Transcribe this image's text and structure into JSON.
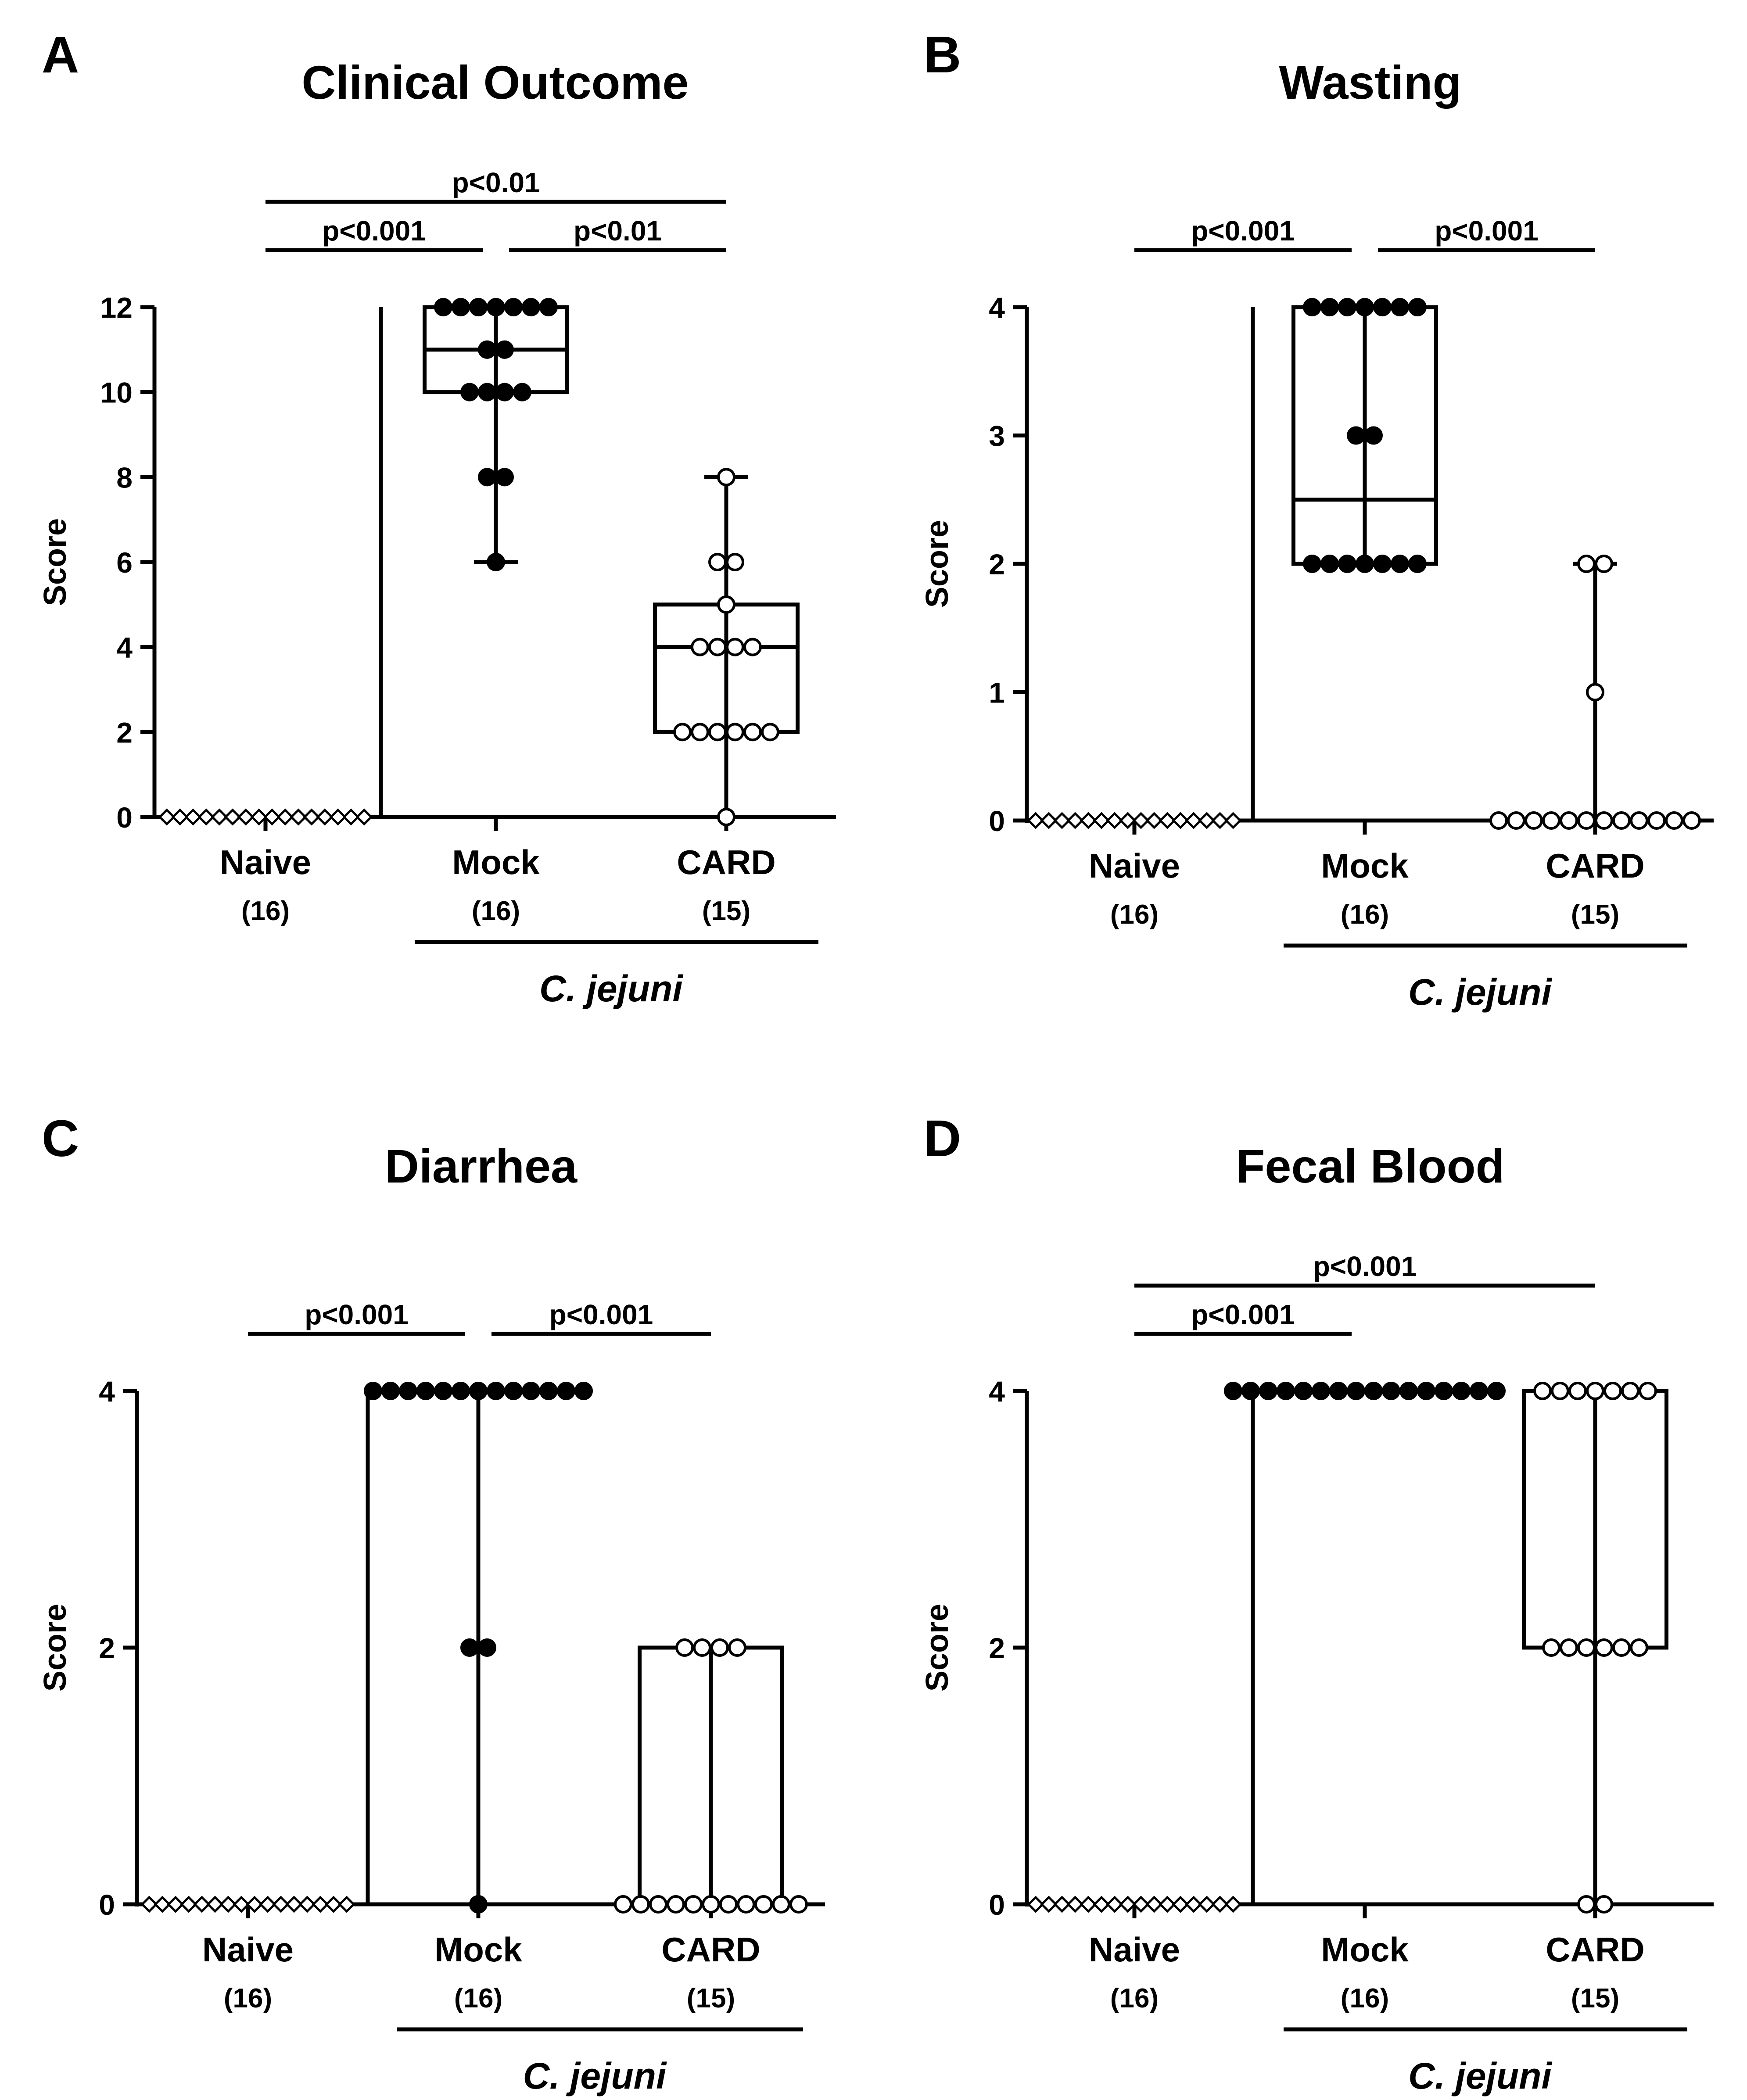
{
  "figure": {
    "y_axis_label": "Score",
    "group_note": "C. jejuni",
    "colors": {
      "ink": "#000000",
      "background": "#ffffff"
    }
  },
  "chart_data": [
    {
      "panel": "A",
      "title": "Clinical Outcome",
      "type": "box-dot",
      "ylabel": "Score",
      "ylim": [
        0,
        12
      ],
      "yticks": [
        "0",
        "2",
        "4",
        "6",
        "8",
        "10",
        "12"
      ],
      "categories": [
        {
          "label": "Naive",
          "n": "(16)",
          "marker": "diamond-open"
        },
        {
          "label": "Mock",
          "n": "(16)",
          "marker": "circle-filled"
        },
        {
          "label": "CARD",
          "n": "(15)",
          "marker": "circle-open"
        }
      ],
      "series": [
        {
          "name": "Naive",
          "values": [
            0,
            0,
            0,
            0,
            0,
            0,
            0,
            0,
            0,
            0,
            0,
            0,
            0,
            0,
            0,
            0
          ],
          "box": null
        },
        {
          "name": "Mock",
          "values": [
            12,
            12,
            12,
            12,
            12,
            12,
            12,
            11,
            11,
            10,
            10,
            10,
            10,
            8,
            8,
            6
          ],
          "box": {
            "min": 6,
            "q1": 10,
            "median": 11,
            "q3": 12,
            "max": 12
          }
        },
        {
          "name": "CARD",
          "values": [
            8,
            6,
            6,
            5,
            4,
            4,
            4,
            4,
            2,
            2,
            2,
            2,
            2,
            2,
            0
          ],
          "box": {
            "min": 0,
            "q1": 2,
            "median": 4,
            "q3": 5,
            "max": 8
          }
        }
      ],
      "comparisons": [
        {
          "from": "Naive",
          "to": "CARD",
          "label": "p<0.01"
        },
        {
          "from": "Naive",
          "to": "Mock",
          "label": "p<0.001"
        },
        {
          "from": "Mock",
          "to": "CARD",
          "label": "p<0.01"
        }
      ],
      "group_label": "C. jejuni"
    },
    {
      "panel": "B",
      "title": "Wasting",
      "type": "box-dot",
      "ylabel": "Score",
      "ylim": [
        0,
        4
      ],
      "yticks": [
        "0",
        "1",
        "2",
        "3",
        "4"
      ],
      "categories": [
        {
          "label": "Naive",
          "n": "(16)",
          "marker": "diamond-open"
        },
        {
          "label": "Mock",
          "n": "(16)",
          "marker": "circle-filled"
        },
        {
          "label": "CARD",
          "n": "(15)",
          "marker": "circle-open"
        }
      ],
      "series": [
        {
          "name": "Naive",
          "values": [
            0,
            0,
            0,
            0,
            0,
            0,
            0,
            0,
            0,
            0,
            0,
            0,
            0,
            0,
            0,
            0
          ],
          "box": null
        },
        {
          "name": "Mock",
          "values": [
            4,
            4,
            4,
            4,
            4,
            4,
            4,
            3,
            3,
            2,
            2,
            2,
            2,
            2,
            2,
            2
          ],
          "box": {
            "min": 2,
            "q1": 2,
            "median": 2.5,
            "q3": 4,
            "max": 4
          }
        },
        {
          "name": "CARD",
          "values": [
            2,
            2,
            1,
            0,
            0,
            0,
            0,
            0,
            0,
            0,
            0,
            0,
            0,
            0,
            0
          ],
          "box": {
            "min": 0,
            "q1": 0,
            "median": 0,
            "q3": 0,
            "max": 2
          }
        }
      ],
      "comparisons": [
        {
          "from": "Naive",
          "to": "Mock",
          "label": "p<0.001"
        },
        {
          "from": "Mock",
          "to": "CARD",
          "label": "p<0.001"
        }
      ],
      "group_label": "C. jejuni"
    },
    {
      "panel": "C",
      "title": "Diarrhea",
      "type": "box-dot",
      "ylabel": "Score",
      "ylim": [
        0,
        4
      ],
      "yticks": [
        "0",
        "2",
        "4"
      ],
      "categories": [
        {
          "label": "Naive",
          "n": "(16)",
          "marker": "diamond-open"
        },
        {
          "label": "Mock",
          "n": "(16)",
          "marker": "circle-filled"
        },
        {
          "label": "CARD",
          "n": "(15)",
          "marker": "circle-open"
        }
      ],
      "series": [
        {
          "name": "Naive",
          "values": [
            0,
            0,
            0,
            0,
            0,
            0,
            0,
            0,
            0,
            0,
            0,
            0,
            0,
            0,
            0,
            0
          ],
          "box": null
        },
        {
          "name": "Mock",
          "values": [
            4,
            4,
            4,
            4,
            4,
            4,
            4,
            4,
            4,
            4,
            4,
            4,
            4,
            2,
            2,
            0
          ],
          "box": {
            "min": 0,
            "q1": 4,
            "median": 4,
            "q3": 4,
            "max": 4
          }
        },
        {
          "name": "CARD",
          "values": [
            2,
            2,
            2,
            2,
            0,
            0,
            0,
            0,
            0,
            0,
            0,
            0,
            0,
            0,
            0
          ],
          "box": {
            "min": 0,
            "q1": 0,
            "median": 0,
            "q3": 2,
            "max": 2
          }
        }
      ],
      "comparisons": [
        {
          "from": "Naive",
          "to": "Mock",
          "label": "p<0.001"
        },
        {
          "from": "Mock",
          "to": "CARD",
          "label": "p<0.001"
        }
      ],
      "group_label": "C. jejuni"
    },
    {
      "panel": "D",
      "title": "Fecal Blood",
      "type": "box-dot",
      "ylabel": "Score",
      "ylim": [
        0,
        4
      ],
      "yticks": [
        "0",
        "2",
        "4"
      ],
      "categories": [
        {
          "label": "Naive",
          "n": "(16)",
          "marker": "diamond-open"
        },
        {
          "label": "Mock",
          "n": "(16)",
          "marker": "circle-filled"
        },
        {
          "label": "CARD",
          "n": "(15)",
          "marker": "circle-open"
        }
      ],
      "series": [
        {
          "name": "Naive",
          "values": [
            0,
            0,
            0,
            0,
            0,
            0,
            0,
            0,
            0,
            0,
            0,
            0,
            0,
            0,
            0,
            0
          ],
          "box": null
        },
        {
          "name": "Mock",
          "values": [
            4,
            4,
            4,
            4,
            4,
            4,
            4,
            4,
            4,
            4,
            4,
            4,
            4,
            4,
            4,
            4
          ],
          "box": {
            "min": 4,
            "q1": 4,
            "median": 4,
            "q3": 4,
            "max": 4
          }
        },
        {
          "name": "CARD",
          "values": [
            4,
            4,
            4,
            4,
            4,
            4,
            4,
            2,
            2,
            2,
            2,
            2,
            2,
            0,
            0
          ],
          "box": {
            "min": 0,
            "q1": 2,
            "median": 2,
            "q3": 4,
            "max": 4
          }
        }
      ],
      "comparisons": [
        {
          "from": "Naive",
          "to": "CARD",
          "label": "p<0.001"
        },
        {
          "from": "Naive",
          "to": "Mock",
          "label": "p<0.001"
        }
      ],
      "group_label": "C. jejuni"
    }
  ]
}
